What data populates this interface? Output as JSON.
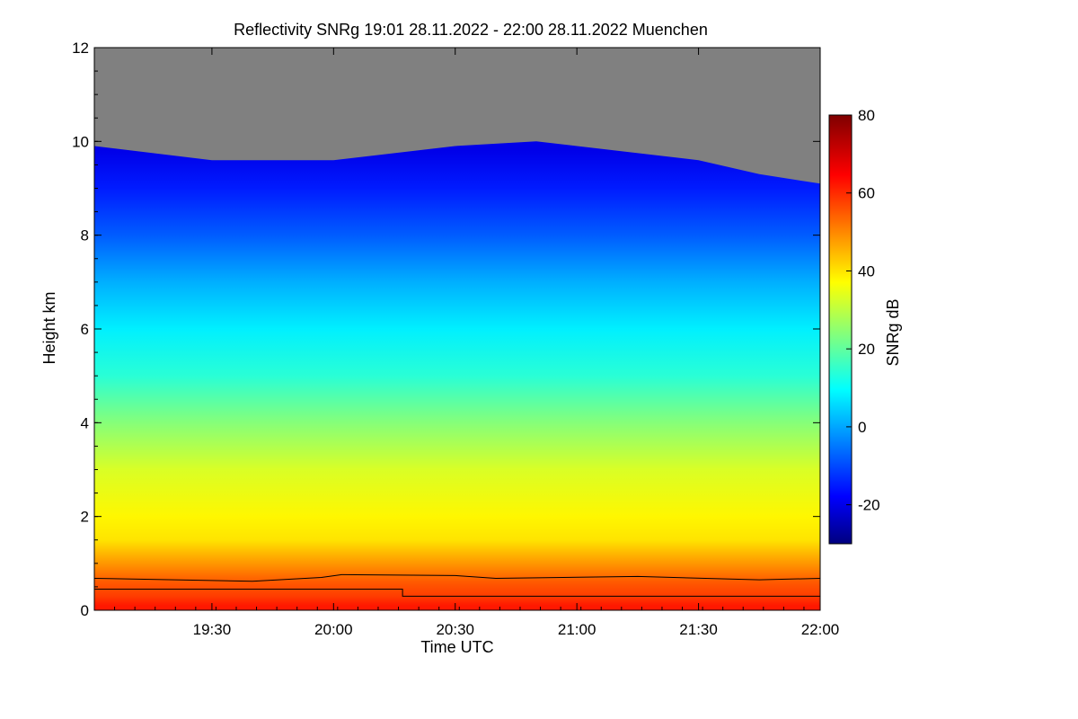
{
  "chart_data": {
    "type": "heatmap",
    "title": "Reflectivity SNRg   19:01 28.11.2022 - 22:00 28.11.2022 Muenchen",
    "xlabel": "Time UTC",
    "ylabel": "Height km",
    "xlim": [
      "19:01",
      "22:00"
    ],
    "ylim": [
      0,
      12
    ],
    "x_ticks": [
      {
        "label": "19:30",
        "minutes": 29
      },
      {
        "label": "20:00",
        "minutes": 59
      },
      {
        "label": "20:30",
        "minutes": 89
      },
      {
        "label": "21:00",
        "minutes": 119
      },
      {
        "label": "21:30",
        "minutes": 149
      },
      {
        "label": "22:00",
        "minutes": 179
      }
    ],
    "y_ticks": [
      "0",
      "2",
      "4",
      "6",
      "8",
      "10",
      "12"
    ],
    "colorbar": {
      "label": "SNRg dB",
      "range": [
        -30,
        80
      ],
      "ticks": [
        "-20",
        "0",
        "20",
        "40",
        "60",
        "80"
      ]
    },
    "no_signal_color": "#808080",
    "snr_profile": [
      {
        "height": 0.1,
        "snr": 62
      },
      {
        "height": 0.3,
        "snr": 58
      },
      {
        "height": 0.6,
        "snr": 55
      },
      {
        "height": 0.9,
        "snr": 50
      },
      {
        "height": 1.5,
        "snr": 40
      },
      {
        "height": 2.0,
        "snr": 38
      },
      {
        "height": 3.0,
        "snr": 33
      },
      {
        "height": 4.0,
        "snr": 24
      },
      {
        "height": 5.0,
        "snr": 14
      },
      {
        "height": 6.0,
        "snr": 8
      },
      {
        "height": 7.0,
        "snr": 1
      },
      {
        "height": 8.0,
        "snr": -8
      },
      {
        "height": 9.0,
        "snr": -15
      },
      {
        "height": 9.8,
        "snr": -20
      }
    ],
    "signal_top": [
      {
        "time": "19:01",
        "height": 9.9
      },
      {
        "time": "19:30",
        "height": 9.6
      },
      {
        "time": "20:00",
        "height": 9.6
      },
      {
        "time": "20:30",
        "height": 9.9
      },
      {
        "time": "20:50",
        "height": 10.0
      },
      {
        "time": "21:00",
        "height": 9.9
      },
      {
        "time": "21:30",
        "height": 9.6
      },
      {
        "time": "21:45",
        "height": 9.3
      },
      {
        "time": "22:00",
        "height": 9.1
      }
    ],
    "series": [
      {
        "points": [
          {
            "time": "19:01",
            "height": 0.68
          },
          {
            "time": "19:40",
            "height": 0.62
          },
          {
            "time": "19:57",
            "height": 0.7
          },
          {
            "time": "20:02",
            "height": 0.76
          },
          {
            "time": "20:30",
            "height": 0.74
          },
          {
            "time": "20:40",
            "height": 0.68
          },
          {
            "time": "21:15",
            "height": 0.72
          },
          {
            "time": "21:45",
            "height": 0.65
          },
          {
            "time": "22:00",
            "height": 0.68
          }
        ]
      },
      {
        "points": [
          {
            "time": "19:01",
            "height": 0.45
          },
          {
            "time": "20:17",
            "height": 0.45
          },
          {
            "time": "20:17",
            "height": 0.3
          },
          {
            "time": "22:00",
            "height": 0.3
          }
        ]
      }
    ]
  }
}
